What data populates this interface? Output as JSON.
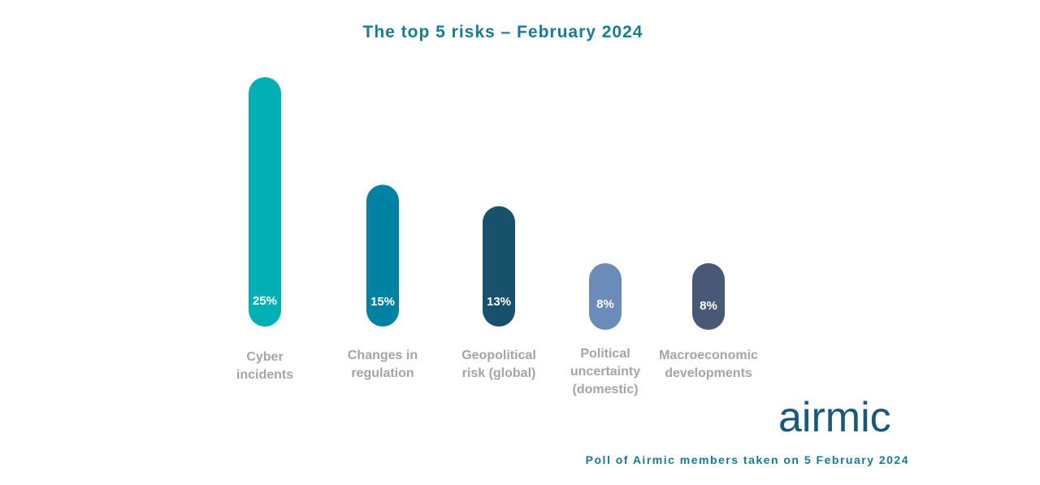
{
  "chart_data": {
    "type": "bar",
    "title": "The top 5 risks – February 2024",
    "categories": [
      [
        "Cyber",
        "incidents"
      ],
      [
        "Changes in",
        "regulation"
      ],
      [
        "Geopolitical",
        "risk (global)"
      ],
      [
        "Political",
        "uncertainty",
        "(domestic)"
      ],
      [
        "Macroeconomic",
        "developments"
      ]
    ],
    "values": [
      25,
      15,
      13,
      8,
      8
    ],
    "data_labels": [
      "25%",
      "15%",
      "13%",
      "8%",
      "8%"
    ],
    "colors": [
      "#00b0b4",
      "#0083a2",
      "#18516b",
      "#6b8cb8",
      "#4a5878"
    ],
    "ylim": [
      0,
      25
    ],
    "xlabel": "",
    "ylabel": "",
    "grid": false,
    "legend": "none"
  },
  "brand": {
    "logo_text": "airmic"
  },
  "footnote": "Poll of Airmic members taken on 5 February 2024"
}
